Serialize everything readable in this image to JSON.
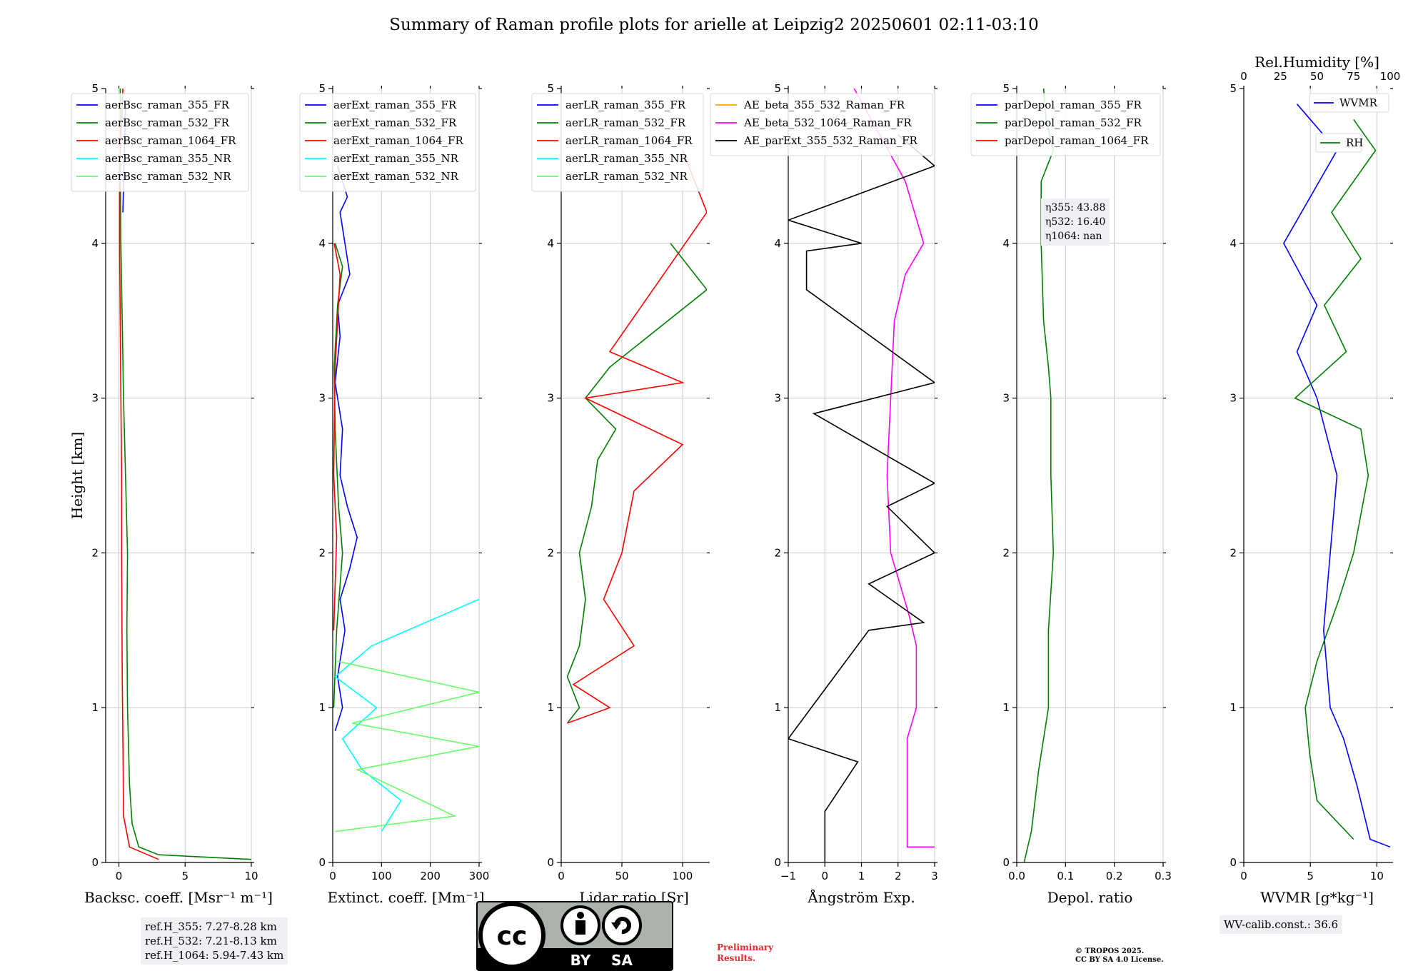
{
  "title": "Summary of Raman profile plots for arielle at Leipzig2 20250601 02:11-03:10",
  "y_label": "Height [km]",
  "notes": {
    "ref_heights": [
      "ref.H_355: 7.27-8.28 km",
      "ref.H_532: 7.21-8.13 km",
      "ref.H_1064: 5.94-7.43 km"
    ],
    "wv_calib": "WV-calib.const.: 36.6",
    "depol_eta": [
      "η355: 43.88",
      "η532: 16.40",
      "η1064: nan"
    ],
    "preliminary": [
      "Preliminary",
      "Results."
    ],
    "copyright": [
      "© TROPOS 2025.",
      "CC BY SA 4.0 License."
    ],
    "license_badge": [
      "BY",
      "SA"
    ]
  },
  "colors": {
    "blue": "#0000ff",
    "green": "#008000",
    "red": "#ff0000",
    "cyan": "#00ffff",
    "lightgreen": "#66ff66",
    "orange": "#ffa500",
    "magenta": "#ff00ff",
    "black": "#000000"
  },
  "chart_data": [
    {
      "type": "line",
      "xlabel": "Backsc. coeff. [Msr⁻¹ m⁻¹]",
      "ylabel": "Height [km]",
      "xlim": [
        -1,
        10
      ],
      "ylim": [
        0,
        5
      ],
      "xticks": [
        "0",
        "5",
        "10"
      ],
      "grid": true,
      "legend": "top",
      "series": [
        {
          "name": "aerBsc_raman_355_FR",
          "color": "#0000ff",
          "points": [
            [
              0.3,
              4.2
            ],
            [
              0.5,
              4.9
            ]
          ]
        },
        {
          "name": "aerBsc_raman_532_FR",
          "color": "#008000",
          "points": [
            [
              10,
              0.02
            ],
            [
              3,
              0.05
            ],
            [
              1.5,
              0.1
            ],
            [
              1.0,
              0.25
            ],
            [
              0.8,
              0.5
            ],
            [
              0.65,
              1.0
            ],
            [
              0.6,
              1.5
            ],
            [
              0.65,
              2.0
            ],
            [
              0.5,
              2.5
            ],
            [
              0.35,
              3.0
            ],
            [
              0.25,
              3.5
            ],
            [
              0.15,
              4.0
            ],
            [
              0.1,
              4.5
            ],
            [
              0.1,
              5.0
            ]
          ]
        },
        {
          "name": "aerBsc_raman_1064_FR",
          "color": "#ff0000",
          "points": [
            [
              3,
              0.02
            ],
            [
              0.8,
              0.1
            ],
            [
              0.35,
              0.3
            ],
            [
              0.3,
              0.8
            ],
            [
              0.25,
              1.2
            ],
            [
              0.2,
              2.0
            ],
            [
              0.2,
              2.5
            ],
            [
              0.15,
              3.0
            ],
            [
              0.1,
              3.5
            ],
            [
              0.05,
              4.0
            ],
            [
              0.05,
              4.5
            ],
            [
              0.3,
              5.0
            ]
          ]
        },
        {
          "name": "aerBsc_raman_355_NR",
          "color": "#00ffff",
          "points": []
        },
        {
          "name": "aerBsc_raman_532_NR",
          "color": "#66ff66",
          "points": []
        }
      ]
    },
    {
      "type": "line",
      "xlabel": "Extinct. coeff. [Mm⁻¹]",
      "xlim": [
        0,
        300
      ],
      "ylim": [
        0,
        5
      ],
      "xticks": [
        "0",
        "100",
        "200",
        "300"
      ],
      "grid": true,
      "legend": "top",
      "series": [
        {
          "name": "aerExt_raman_355_FR",
          "color": "#0000ff",
          "points": [
            [
              5,
              0.85
            ],
            [
              20,
              1.0
            ],
            [
              10,
              1.2
            ],
            [
              25,
              1.5
            ],
            [
              15,
              1.7
            ],
            [
              35,
              1.9
            ],
            [
              50,
              2.1
            ],
            [
              30,
              2.3
            ],
            [
              15,
              2.5
            ],
            [
              20,
              2.8
            ],
            [
              5,
              3.1
            ],
            [
              15,
              3.4
            ],
            [
              10,
              3.6
            ],
            [
              35,
              3.8
            ],
            [
              25,
              4.0
            ],
            [
              15,
              4.2
            ],
            [
              30,
              4.3
            ],
            [
              10,
              4.5
            ]
          ]
        },
        {
          "name": "aerExt_raman_532_FR",
          "color": "#008000",
          "points": [
            [
              2,
              1.0
            ],
            [
              8,
              1.5
            ],
            [
              20,
              2.0
            ],
            [
              12,
              2.3
            ],
            [
              5,
              2.8
            ],
            [
              3,
              3.2
            ],
            [
              10,
              3.6
            ],
            [
              20,
              3.85
            ],
            [
              5,
              4.0
            ]
          ]
        },
        {
          "name": "aerExt_raman_1064_FR",
          "color": "#ff0000",
          "points": [
            [
              2,
              1.5
            ],
            [
              8,
              2.1
            ],
            [
              2,
              2.5
            ],
            [
              5,
              3.2
            ],
            [
              15,
              3.8
            ],
            [
              3,
              4.0
            ]
          ]
        },
        {
          "name": "aerExt_raman_355_NR",
          "color": "#00ffff",
          "points": [
            [
              100,
              0.2
            ],
            [
              140,
              0.4
            ],
            [
              60,
              0.6
            ],
            [
              20,
              0.8
            ],
            [
              90,
              1.0
            ],
            [
              5,
              1.2
            ],
            [
              80,
              1.4
            ],
            [
              300,
              1.7
            ]
          ]
        },
        {
          "name": "aerExt_raman_532_NR",
          "color": "#66ff66",
          "points": [
            [
              5,
              0.2
            ],
            [
              250,
              0.3
            ],
            [
              150,
              0.45
            ],
            [
              50,
              0.6
            ],
            [
              300,
              0.75
            ],
            [
              40,
              0.9
            ],
            [
              300,
              1.1
            ],
            [
              10,
              1.3
            ]
          ]
        }
      ]
    },
    {
      "type": "line",
      "xlabel": "Lidar ratio [Sr]",
      "xlim": [
        0,
        120
      ],
      "ylim": [
        0,
        5
      ],
      "xticks": [
        "0",
        "50",
        "100"
      ],
      "grid": true,
      "legend": "top",
      "series": [
        {
          "name": "aerLR_raman_355_FR",
          "color": "#0000ff",
          "points": []
        },
        {
          "name": "aerLR_raman_532_FR",
          "color": "#008000",
          "points": [
            [
              5,
              0.9
            ],
            [
              15,
              1.0
            ],
            [
              5,
              1.2
            ],
            [
              15,
              1.4
            ],
            [
              20,
              1.7
            ],
            [
              15,
              2.0
            ],
            [
              25,
              2.3
            ],
            [
              30,
              2.6
            ],
            [
              45,
              2.8
            ],
            [
              20,
              3.0
            ],
            [
              40,
              3.2
            ],
            [
              120,
              3.7
            ],
            [
              90,
              4.0
            ]
          ]
        },
        {
          "name": "aerLR_raman_1064_FR",
          "color": "#ff0000",
          "points": [
            [
              5,
              0.9
            ],
            [
              40,
              1.0
            ],
            [
              10,
              1.15
            ],
            [
              60,
              1.4
            ],
            [
              35,
              1.7
            ],
            [
              50,
              2.0
            ],
            [
              60,
              2.4
            ],
            [
              100,
              2.7
            ],
            [
              20,
              3.0
            ],
            [
              100,
              3.1
            ],
            [
              40,
              3.3
            ],
            [
              120,
              4.2
            ],
            [
              100,
              4.6
            ]
          ]
        },
        {
          "name": "aerLR_raman_355_NR",
          "color": "#00ffff",
          "points": []
        },
        {
          "name": "aerLR_raman_532_NR",
          "color": "#66ff66",
          "points": []
        }
      ]
    },
    {
      "type": "line",
      "xlabel": "Ångström Exp.",
      "xlim": [
        -1,
        3
      ],
      "ylim": [
        0,
        5
      ],
      "xticks": [
        "−1",
        "0",
        "1",
        "2",
        "3"
      ],
      "grid": true,
      "legend": "top",
      "series": [
        {
          "name": "AE_beta_355_532_Raman_FR",
          "color": "#ffa500",
          "points": []
        },
        {
          "name": "AE_beta_532_1064_Raman_FR",
          "color": "#ff00ff",
          "points": [
            [
              3,
              0.1
            ],
            [
              2.25,
              0.1
            ],
            [
              2.25,
              0.8
            ],
            [
              2.5,
              1.0
            ],
            [
              2.5,
              1.4
            ],
            [
              2.3,
              1.6
            ],
            [
              1.8,
              2.0
            ],
            [
              1.7,
              2.5
            ],
            [
              1.8,
              3.0
            ],
            [
              1.9,
              3.5
            ],
            [
              2.2,
              3.8
            ],
            [
              2.7,
              4.0
            ],
            [
              2.2,
              4.4
            ],
            [
              1.5,
              4.7
            ],
            [
              0.8,
              5.0
            ]
          ]
        },
        {
          "name": "AE_parExt_355_532_Raman_FR",
          "color": "#000000",
          "points": [
            [
              0,
              0
            ],
            [
              0,
              0.33
            ],
            [
              0.9,
              0.65
            ],
            [
              -1,
              0.8
            ],
            [
              1.2,
              1.5
            ],
            [
              2.7,
              1.55
            ],
            [
              1.2,
              1.8
            ],
            [
              3,
              2.0
            ],
            [
              1.7,
              2.3
            ],
            [
              3,
              2.45
            ],
            [
              -0.3,
              2.9
            ],
            [
              3,
              3.1
            ],
            [
              -0.5,
              3.7
            ],
            [
              -0.5,
              3.95
            ],
            [
              1,
              4.0
            ],
            [
              -1,
              4.15
            ],
            [
              3,
              4.5
            ],
            [
              2,
              4.7
            ]
          ]
        }
      ]
    },
    {
      "type": "line",
      "xlabel": "Depol. ratio",
      "xlim": [
        0,
        0.3
      ],
      "ylim": [
        0,
        5
      ],
      "xticks": [
        "0.0",
        "0.1",
        "0.2",
        "0.3"
      ],
      "grid": true,
      "legend": "top",
      "series": [
        {
          "name": "parDepol_raman_355_FR",
          "color": "#0000ff",
          "points": []
        },
        {
          "name": "parDepol_raman_532_FR",
          "color": "#008000",
          "points": [
            [
              0.015,
              0.0
            ],
            [
              0.03,
              0.2
            ],
            [
              0.045,
              0.6
            ],
            [
              0.065,
              1.0
            ],
            [
              0.065,
              1.5
            ],
            [
              0.075,
              2.0
            ],
            [
              0.07,
              2.5
            ],
            [
              0.07,
              3.0
            ],
            [
              0.065,
              3.2
            ],
            [
              0.055,
              3.5
            ],
            [
              0.05,
              4.0
            ],
            [
              0.05,
              4.4
            ],
            [
              0.075,
              4.6
            ],
            [
              0.06,
              4.8
            ],
            [
              0.055,
              5.0
            ]
          ]
        },
        {
          "name": "parDepol_raman_1064_FR",
          "color": "#ff0000",
          "points": []
        }
      ]
    },
    {
      "type": "line",
      "xlabel": "WVMR [g*kg⁻¹]",
      "x2label": "Rel.Humidity [%]",
      "xlim": [
        0,
        11
      ],
      "x2lim": [
        0,
        100
      ],
      "ylim": [
        0,
        5
      ],
      "xticks": [
        "0",
        "5",
        "10"
      ],
      "x2ticks": [
        "0",
        "25",
        "50",
        "75",
        "100"
      ],
      "grid": true,
      "legend": "top-right",
      "series": [
        {
          "name": "WVMR",
          "color": "#0000ff",
          "points": [
            [
              11,
              0.1
            ],
            [
              9.5,
              0.15
            ],
            [
              8.5,
              0.5
            ],
            [
              7.5,
              0.8
            ],
            [
              6.5,
              1.0
            ],
            [
              6,
              1.5
            ],
            [
              6.5,
              2.0
            ],
            [
              7,
              2.5
            ],
            [
              5.5,
              3.0
            ],
            [
              4,
              3.3
            ],
            [
              5.5,
              3.6
            ],
            [
              3,
              4.0
            ],
            [
              5,
              4.3
            ],
            [
              7,
              4.6
            ],
            [
              4,
              4.9
            ]
          ]
        },
        {
          "name": "RH",
          "color": "#008000",
          "points": [
            [
              75,
              0.15
            ],
            [
              50,
              0.4
            ],
            [
              45,
              0.7
            ],
            [
              42,
              1.0
            ],
            [
              50,
              1.3
            ],
            [
              65,
              1.7
            ],
            [
              75,
              2.0
            ],
            [
              85,
              2.5
            ],
            [
              80,
              2.8
            ],
            [
              35,
              3.0
            ],
            [
              70,
              3.3
            ],
            [
              55,
              3.6
            ],
            [
              80,
              3.9
            ],
            [
              60,
              4.2
            ],
            [
              90,
              4.6
            ],
            [
              75,
              4.8
            ]
          ]
        }
      ]
    }
  ]
}
